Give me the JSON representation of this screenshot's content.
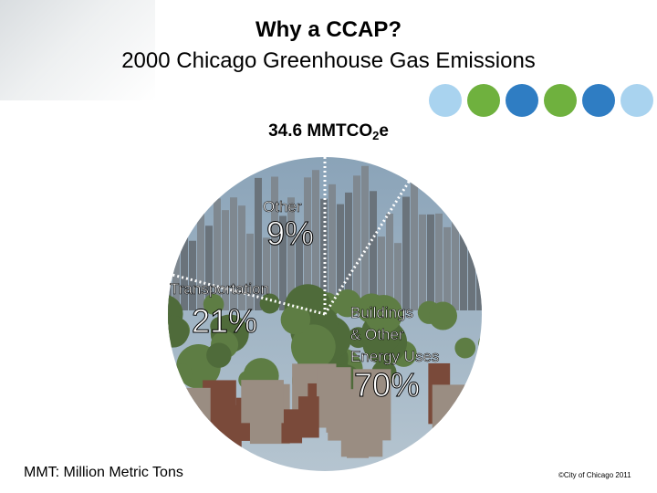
{
  "slide": {
    "title_line1": "Why a CCAP?",
    "title_line2": "2000 Chicago Greenhouse Gas Emissions",
    "footnote": "MMT: Million Metric Tons",
    "copyright": "©City of Chicago 2011"
  },
  "decoration": {
    "dot_colors": [
      "#a9d3ef",
      "#6fb13e",
      "#2f7dc3",
      "#6fb13e",
      "#2f7dc3",
      "#a9d3ef",
      "#6fb13e",
      "#a9d3ef"
    ]
  },
  "chart_data": {
    "type": "pie",
    "title": "2000 Chicago Greenhouse Gas Emissions",
    "total": {
      "prefix": "34.6 MMTCO",
      "subscript": "2",
      "suffix": "e"
    },
    "categories": [
      "Buildings & Other Energy Uses",
      "Transportation",
      "Other"
    ],
    "values": [
      70,
      21,
      9
    ],
    "labels": [
      {
        "lines": [
          "Buildings",
          "& Other",
          "Energy Uses"
        ],
        "percent": "70%"
      },
      {
        "lines": [
          "Transportation"
        ],
        "percent": "21%"
      },
      {
        "lines": [
          "Other"
        ],
        "percent": "9%"
      }
    ],
    "colors": {
      "sky": "#8aa3b8",
      "haze": "#b7c6d1",
      "city": "#6a737b",
      "trees": "#4f6b3a",
      "brick": "#7a4a3a",
      "divider": "#ffffff",
      "text": "#000000",
      "percent_text": "#ffffff",
      "percent_stroke": "#000000"
    }
  }
}
